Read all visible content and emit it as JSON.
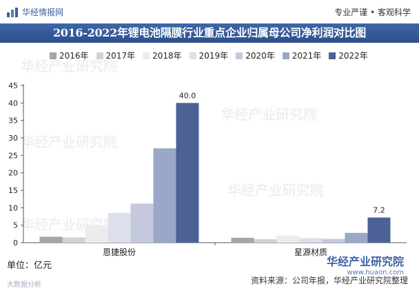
{
  "header": {
    "brand": "华经情报网",
    "slogan": "专业严谨 • 客观科学"
  },
  "chart_data": {
    "type": "bar",
    "title": "2016-2022年锂电池隔膜行业重点企业归属母公司净利润对比图",
    "categories": [
      "恩捷股份",
      "星源材质"
    ],
    "series": [
      {
        "name": "2016年",
        "color": "#a6a6a6",
        "values": [
          1.7,
          1.4
        ]
      },
      {
        "name": "2017年",
        "color": "#d2d2d2",
        "values": [
          1.5,
          1.0
        ]
      },
      {
        "name": "2018年",
        "color": "#ececec",
        "values": [
          5.0,
          2.0
        ]
      },
      {
        "name": "2019年",
        "color": "#dde0ea",
        "values": [
          8.5,
          1.3
        ]
      },
      {
        "name": "2020年",
        "color": "#c4c9dd",
        "values": [
          11.2,
          1.1
        ]
      },
      {
        "name": "2021年",
        "color": "#9aa7c7",
        "values": [
          27.0,
          2.8
        ]
      },
      {
        "name": "2022年",
        "color": "#4c6296",
        "values": [
          40.0,
          7.2
        ]
      }
    ],
    "data_labels": {
      "恩捷股份": "40.0",
      "星源材质": "7.2"
    },
    "ylim": [
      0,
      45
    ],
    "yticks": [
      0,
      5,
      10,
      15,
      20,
      25,
      30,
      35,
      40,
      45
    ],
    "legend_position": "top",
    "grid": false
  },
  "unit_label": "单位：亿元",
  "source_label": "资料来源：公司年报，华经产业研究院整理",
  "watermark": {
    "text": "华经产业研究院",
    "logo_text": "华经产业研究院",
    "logo_url": "www.huaon.com",
    "bottom_text": "大数据分析"
  }
}
